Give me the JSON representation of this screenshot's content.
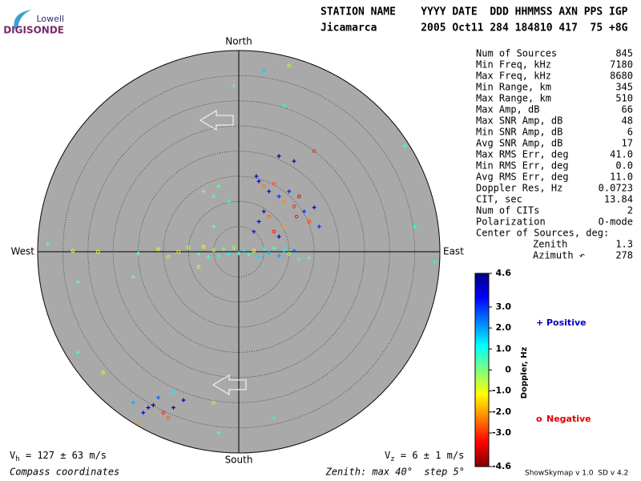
{
  "logo": {
    "line1": "Lowell",
    "line2": "DIGISONDE"
  },
  "header": {
    "labels": "STATION NAME    YYYY DATE  DDD HHMMSS AXN PPS IGP",
    "values": "Jicamarca       2005 Oct11 284 184810 417  75 +8G"
  },
  "stats": [
    {
      "label": "Num of Sources",
      "value": "845"
    },
    {
      "label": "Min Freq, kHz",
      "value": "7180"
    },
    {
      "label": "Max Freq, kHz",
      "value": "8680"
    },
    {
      "label": "Min Range, km",
      "value": "345"
    },
    {
      "label": "Max Range, km",
      "value": "510"
    },
    {
      "label": "Max Amp, dB",
      "value": "66"
    },
    {
      "label": "Max SNR Amp, dB",
      "value": "48"
    },
    {
      "label": "Min SNR Amp, dB",
      "value": "6"
    },
    {
      "label": "Avg SNR Amp, dB",
      "value": "17"
    },
    {
      "label": "Max RMS Err, deg",
      "value": "41.0"
    },
    {
      "label": "Min RMS Err, deg",
      "value": "0.0"
    },
    {
      "label": "Avg RMS Err, deg",
      "value": "11.0"
    },
    {
      "label": "Doppler Res, Hz",
      "value": "0.0723"
    },
    {
      "label": "CIT, sec",
      "value": "13.84"
    },
    {
      "label": "Num of CITs",
      "value": "2"
    },
    {
      "label": "Polarization",
      "value": "O-mode"
    }
  ],
  "center": {
    "title": "Center of Sources, deg:",
    "rows": [
      {
        "label": "Zenith",
        "value": "1.3"
      },
      {
        "label": "Azimuth ↶",
        "value": "278"
      }
    ]
  },
  "footer": {
    "vh": {
      "symbol": "V",
      "sub": "h",
      "text": " = 127 ± 63 m/s"
    },
    "vz": {
      "symbol": "V",
      "sub": "z",
      "text": " = 6 ± 1 m/s"
    },
    "coords": "Compass coordinates",
    "zenith": "Zenith: max 40°  step 5°",
    "version": "ShowSkymap v 1.0  SD v 4.2"
  },
  "chart_data": {
    "type": "skymap",
    "directions": {
      "north": "North",
      "south": "South",
      "west": "West",
      "east": "East"
    },
    "rlim": [
      0,
      40
    ],
    "rticks": [
      5,
      10,
      15,
      20,
      25,
      30,
      35,
      40
    ],
    "colorbar": {
      "label": "Doppler, Hz",
      "lim": [
        -4.6,
        4.6
      ],
      "ticks": [
        4.6,
        {
          "value": 3,
          "label": "3.0"
        },
        {
          "value": 2,
          "label": "2.0"
        },
        {
          "value": 1,
          "label": "1.0"
        },
        0,
        {
          "value": -1,
          "label": "-1.0"
        },
        {
          "value": -2,
          "label": "-2.0"
        },
        {
          "value": -3,
          "label": "-3.0"
        },
        -4.6
      ]
    },
    "legend": {
      "positive": {
        "symbol": "+",
        "name": "Positive",
        "color": "#0000c0"
      },
      "negative": {
        "symbol": "o",
        "name": "Negative",
        "color": "#e00000"
      }
    },
    "points": {
      "x": [
        -38,
        -33,
        -28,
        -20,
        -16,
        -14,
        -12,
        -10,
        -8,
        -7,
        -6,
        -5,
        -4,
        -3,
        -2,
        -1,
        0,
        1,
        2,
        3,
        4,
        5,
        6,
        7,
        8,
        9,
        10,
        11,
        12,
        14,
        -21,
        -32,
        -8,
        -5,
        -5,
        -4,
        -2,
        -7,
        3.5,
        4,
        5,
        6,
        7,
        8,
        9,
        10,
        11,
        5,
        6,
        4,
        7,
        8,
        9,
        3,
        11.5,
        12,
        13,
        14,
        15,
        11,
        15,
        8,
        16,
        5,
        9,
        10,
        -1,
        33,
        35,
        39,
        -32,
        -27,
        -5,
        7,
        -4,
        -18,
        -19,
        -17,
        -15,
        -14,
        -13,
        -11,
        -16,
        -21,
        -20,
        -13
      ],
      "y": [
        1.5,
        0.2,
        0,
        -0.3,
        0.5,
        -1,
        0,
        0.8,
        -0.5,
        1,
        -1,
        0.3,
        -0.8,
        0.5,
        -0.5,
        0.8,
        -0.3,
        0.4,
        -0.6,
        0.2,
        -1,
        0.5,
        -0.3,
        0.7,
        -0.8,
        0.3,
        -0.4,
        0.2,
        -1.5,
        -1.2,
        -5,
        -6,
        -3,
        5,
        11,
        13,
        10,
        12,
        15,
        14,
        13,
        12,
        13.5,
        11,
        10,
        12,
        9,
        8,
        7,
        6,
        4,
        3,
        5,
        4,
        7,
        11,
        8,
        6,
        8.8,
        18,
        20,
        19,
        5,
        36,
        29,
        37,
        33,
        21,
        5,
        -2,
        -20,
        -24,
        -30,
        -33,
        -36,
        -31,
        -32,
        -30.5,
        -32,
        -33,
        -31,
        -29.5,
        -29,
        -30,
        -34,
        -28
      ],
      "doppler": [
        0.5,
        -1.2,
        -1,
        0.3,
        -1,
        -0.5,
        -1.4,
        -0.8,
        0.2,
        -1.2,
        0.4,
        -0.6,
        0.8,
        0.1,
        1,
        -0.3,
        0.6,
        1.2,
        0.5,
        -1,
        1.4,
        0.9,
        1.6,
        0.4,
        2,
        1.1,
        -0.4,
        2.3,
        0.7,
        0.2,
        0.1,
        0.3,
        -0.9,
        0.2,
        0.5,
        0.2,
        0.8,
        0,
        3.9,
        3.5,
        -2.4,
        4.2,
        -2.8,
        3,
        -2.2,
        3.2,
        -3.1,
        4,
        -2.6,
        3.6,
        -3.3,
        4.3,
        -2,
        3.3,
        -3.4,
        -3.6,
        3.1,
        -2.9,
        3.8,
        4.2,
        -3,
        4.4,
        3,
        1.5,
        0.9,
        -0.5,
        0.4,
        0.6,
        0.8,
        1,
        0.5,
        -1.2,
        -0.7,
        0.8,
        0.3,
        4.1,
        3.6,
        4.4,
        -3.2,
        -2.7,
        3.8,
        4,
        2.5,
        1.8,
        -2.1,
        1.2
      ]
    }
  }
}
